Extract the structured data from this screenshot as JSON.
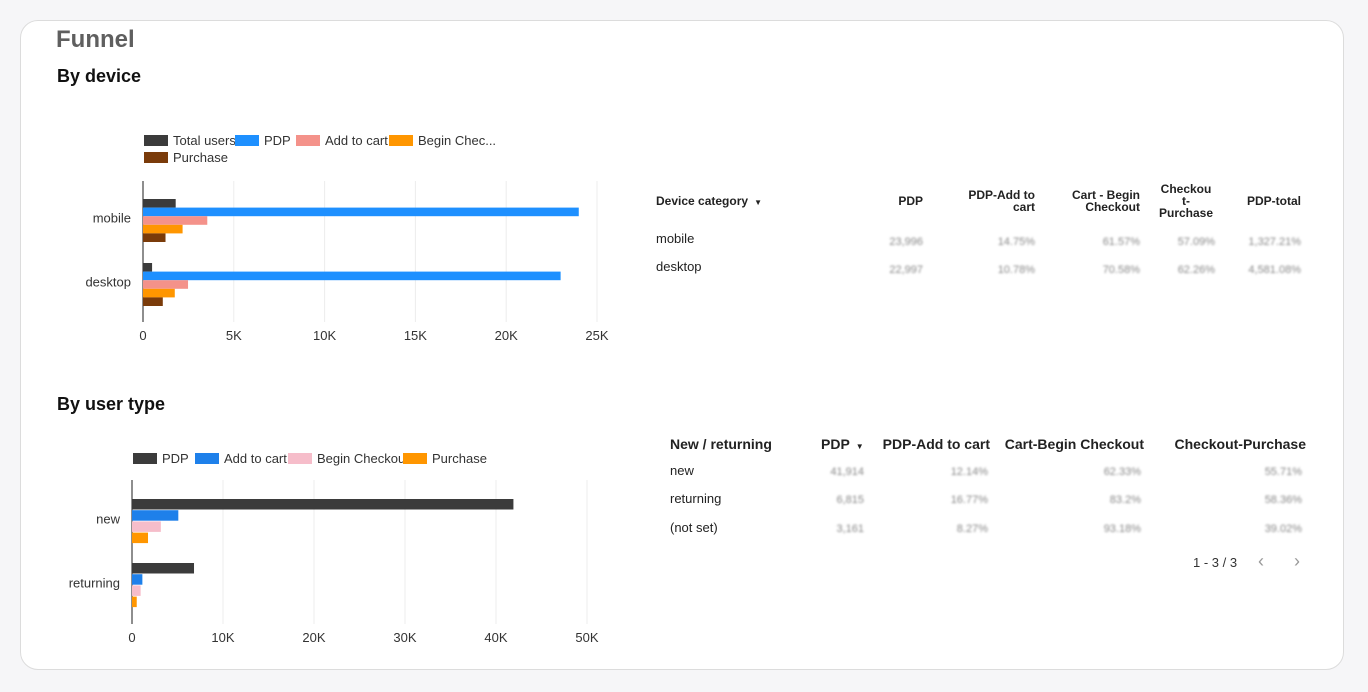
{
  "page_title": "Funnel",
  "device_section_title": "By device",
  "user_section_title": "By user type",
  "colors": {
    "total_users": "#3b3b3b",
    "pdp_blue": "#1e90ff",
    "add_to_cart_salmon": "#f4928a",
    "begin_checkout_orange": "#ff9600",
    "purchase_brown": "#7a3b0a",
    "pdp_dark": "#3b3b3b",
    "add_to_cart_blue": "#1e80ea",
    "begin_checkout_pink": "#f6bdca",
    "purchase_orange": "#ff9600"
  },
  "chart_data": [
    {
      "type": "bar",
      "orientation": "horizontal",
      "categories": [
        "mobile",
        "desktop"
      ],
      "series": [
        {
          "name": "Total users",
          "values": [
            1800,
            500
          ],
          "color": "#3b3b3b"
        },
        {
          "name": "PDP",
          "values": [
            23996,
            22997
          ],
          "color": "#1e90ff"
        },
        {
          "name": "Add to cart",
          "values": [
            3540,
            2480
          ],
          "color": "#f4928a"
        },
        {
          "name": "Begin Checkout",
          "values": [
            2180,
            1750
          ],
          "color": "#ff9600"
        },
        {
          "name": "Purchase",
          "values": [
            1240,
            1090
          ],
          "color": "#7a3b0a"
        }
      ],
      "legend_labels": [
        "Total users",
        "PDP",
        "Add to cart",
        "Begin Chec...",
        "Purchase"
      ],
      "xlim": [
        0,
        25000
      ],
      "xticks": [
        "0",
        "5K",
        "10K",
        "15K",
        "20K",
        "25K"
      ],
      "legend": "top-left",
      "grid": true
    },
    {
      "type": "bar",
      "orientation": "horizontal",
      "categories": [
        "new",
        "returning"
      ],
      "series": [
        {
          "name": "PDP",
          "values": [
            41914,
            6815
          ],
          "color": "#3b3b3b"
        },
        {
          "name": "Add to cart",
          "values": [
            5090,
            1140
          ],
          "color": "#1e80ea"
        },
        {
          "name": "Begin Checkout",
          "values": [
            3170,
            950
          ],
          "color": "#f6bdca"
        },
        {
          "name": "Purchase",
          "values": [
            1760,
            520
          ],
          "color": "#ff9600"
        }
      ],
      "legend_labels": [
        "PDP",
        "Add to cart",
        "Begin Checkout",
        "Purchase"
      ],
      "xlim": [
        0,
        50000
      ],
      "xticks": [
        "0",
        "10K",
        "20K",
        "30K",
        "40K",
        "50K"
      ],
      "legend": "top-left",
      "grid": true
    }
  ],
  "device_table": {
    "headers": {
      "device": "Device category",
      "pdp": "PDP",
      "pdp_atc": [
        "PDP-Add to",
        "cart"
      ],
      "cart_bc": [
        "Cart - Begin",
        "Checkout"
      ],
      "co_purchase": [
        "Checkou",
        "t-",
        "Purchase"
      ],
      "pdp_total": "PDP-total"
    },
    "rows": [
      {
        "label": "mobile",
        "pdp": "23,996",
        "pdp_atc": "14.75%",
        "cart_bc": "61.57%",
        "co_purchase": "57.09%",
        "pdp_total": "1,327.21%"
      },
      {
        "label": "desktop",
        "pdp": "22,997",
        "pdp_atc": "10.78%",
        "cart_bc": "70.58%",
        "co_purchase": "62.26%",
        "pdp_total": "4,581.08%"
      }
    ]
  },
  "user_table": {
    "headers": {
      "type": "New / returning",
      "pdp": "PDP",
      "pdp_atc": "PDP-Add to cart",
      "cart_bc": "Cart-Begin Checkout",
      "co_purchase": "Checkout-Purchase"
    },
    "rows": [
      {
        "label": "new",
        "pdp": "41,914",
        "pdp_atc": "12.14%",
        "cart_bc": "62.33%",
        "co_purchase": "55.71%"
      },
      {
        "label": "returning",
        "pdp": "6,815",
        "pdp_atc": "16.77%",
        "cart_bc": "83.2%",
        "co_purchase": "58.36%"
      },
      {
        "label": "(not set)",
        "pdp": "3,161",
        "pdp_atc": "8.27%",
        "cart_bc": "93.18%",
        "co_purchase": "39.02%"
      }
    ],
    "pagination": "1 - 3 / 3"
  }
}
